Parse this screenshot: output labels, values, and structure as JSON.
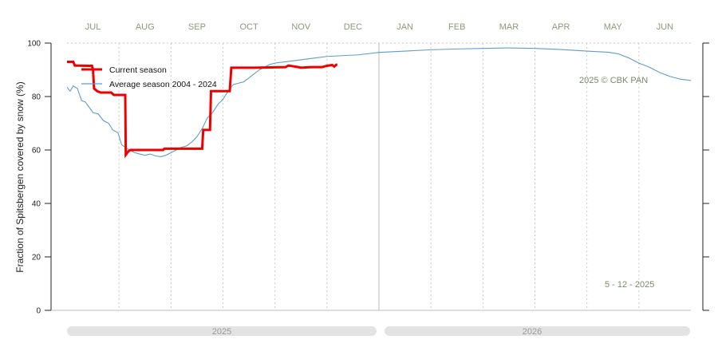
{
  "chart_data": {
    "type": "line",
    "ylabel": "Fraction of  Spitsbergen  covered by snow (%)",
    "ylim": [
      0,
      100
    ],
    "yticks": [
      0,
      20,
      40,
      60,
      80,
      100
    ],
    "months": [
      "JUL",
      "AUG",
      "SEP",
      "OCT",
      "NOV",
      "DEC",
      "JAN",
      "FEB",
      "MAR",
      "APR",
      "MAY",
      "JUN"
    ],
    "years": [
      "2025",
      "2026"
    ],
    "x_unit": "month index from JUL (0 = start of JUL)",
    "grid": "vertical dotted at month boundaries",
    "legend_position": "top-left",
    "annotations": {
      "copyright": "2025  © CBK PAN",
      "date": "5 - 12 - 2025"
    },
    "series": [
      {
        "name": "Current season",
        "color": "#ee0000",
        "style": "step",
        "points": [
          [
            0.0,
            93.0
          ],
          [
            0.12,
            93.0
          ],
          [
            0.15,
            91.6
          ],
          [
            0.4,
            91.5
          ],
          [
            0.48,
            91.5
          ],
          [
            0.5,
            90.0
          ],
          [
            0.52,
            83.0
          ],
          [
            0.58,
            82.0
          ],
          [
            0.65,
            81.5
          ],
          [
            0.85,
            81.5
          ],
          [
            0.9,
            80.6
          ],
          [
            1.12,
            80.6
          ],
          [
            1.13,
            58.2
          ],
          [
            1.18,
            59.5
          ],
          [
            1.22,
            60.0
          ],
          [
            1.85,
            60.0
          ],
          [
            1.87,
            60.5
          ],
          [
            2.6,
            60.5
          ],
          [
            2.62,
            67.5
          ],
          [
            2.75,
            67.5
          ],
          [
            2.77,
            82.0
          ],
          [
            3.13,
            82.0
          ],
          [
            3.16,
            90.8
          ],
          [
            3.6,
            90.8
          ],
          [
            4.2,
            91.0
          ],
          [
            4.26,
            91.6
          ],
          [
            4.45,
            91.0
          ],
          [
            4.5,
            90.8
          ],
          [
            4.7,
            91.0
          ],
          [
            4.75,
            91.0
          ],
          [
            4.9,
            91.0
          ],
          [
            5.0,
            91.5
          ],
          [
            5.1,
            91.8
          ],
          [
            5.14,
            91.2
          ],
          [
            5.18,
            91.9
          ],
          [
            5.2,
            92.0
          ]
        ]
      },
      {
        "name": "Average season 2004 - 2024",
        "color": "#5f9ccc",
        "style": "line",
        "points": [
          [
            0.0,
            83.5
          ],
          [
            0.06,
            82.0
          ],
          [
            0.12,
            84.0
          ],
          [
            0.2,
            83.0
          ],
          [
            0.28,
            78.5
          ],
          [
            0.35,
            78.0
          ],
          [
            0.5,
            74.0
          ],
          [
            0.6,
            73.5
          ],
          [
            0.7,
            71.0
          ],
          [
            0.8,
            70.0
          ],
          [
            0.88,
            67.5
          ],
          [
            0.98,
            66.5
          ],
          [
            1.05,
            62.0
          ],
          [
            1.12,
            61.0
          ],
          [
            1.2,
            60.0
          ],
          [
            1.3,
            59.0
          ],
          [
            1.4,
            58.5
          ],
          [
            1.5,
            58.0
          ],
          [
            1.6,
            58.5
          ],
          [
            1.7,
            57.8
          ],
          [
            1.8,
            57.5
          ],
          [
            1.9,
            58.0
          ],
          [
            2.0,
            59.0
          ],
          [
            2.1,
            60.0
          ],
          [
            2.2,
            61.0
          ],
          [
            2.3,
            61.5
          ],
          [
            2.4,
            63.0
          ],
          [
            2.5,
            65.0
          ],
          [
            2.6,
            68.0
          ],
          [
            2.7,
            72.0
          ],
          [
            2.8,
            74.0
          ],
          [
            2.9,
            77.0
          ],
          [
            3.0,
            79.0
          ],
          [
            3.1,
            82.0
          ],
          [
            3.2,
            84.5
          ],
          [
            3.3,
            85.0
          ],
          [
            3.4,
            85.5
          ],
          [
            3.5,
            87.0
          ],
          [
            3.6,
            88.5
          ],
          [
            3.7,
            90.0
          ],
          [
            3.8,
            91.0
          ],
          [
            3.9,
            92.0
          ],
          [
            4.0,
            92.5
          ],
          [
            4.2,
            93.0
          ],
          [
            4.4,
            93.5
          ],
          [
            4.6,
            94.0
          ],
          [
            4.8,
            94.5
          ],
          [
            5.0,
            95.0
          ],
          [
            5.3,
            95.3
          ],
          [
            5.6,
            95.6
          ],
          [
            6.0,
            96.5
          ],
          [
            6.5,
            97.0
          ],
          [
            7.0,
            97.5
          ],
          [
            7.5,
            97.8
          ],
          [
            8.0,
            98.0
          ],
          [
            8.5,
            98.2
          ],
          [
            9.0,
            98.0
          ],
          [
            9.5,
            97.6
          ],
          [
            10.0,
            97.0
          ],
          [
            10.4,
            96.6
          ],
          [
            10.6,
            96.0
          ],
          [
            10.8,
            94.5
          ],
          [
            11.0,
            92.5
          ],
          [
            11.2,
            91.0
          ],
          [
            11.4,
            89.0
          ],
          [
            11.6,
            87.5
          ],
          [
            11.8,
            86.5
          ],
          [
            12.0,
            86.0
          ]
        ]
      }
    ]
  }
}
